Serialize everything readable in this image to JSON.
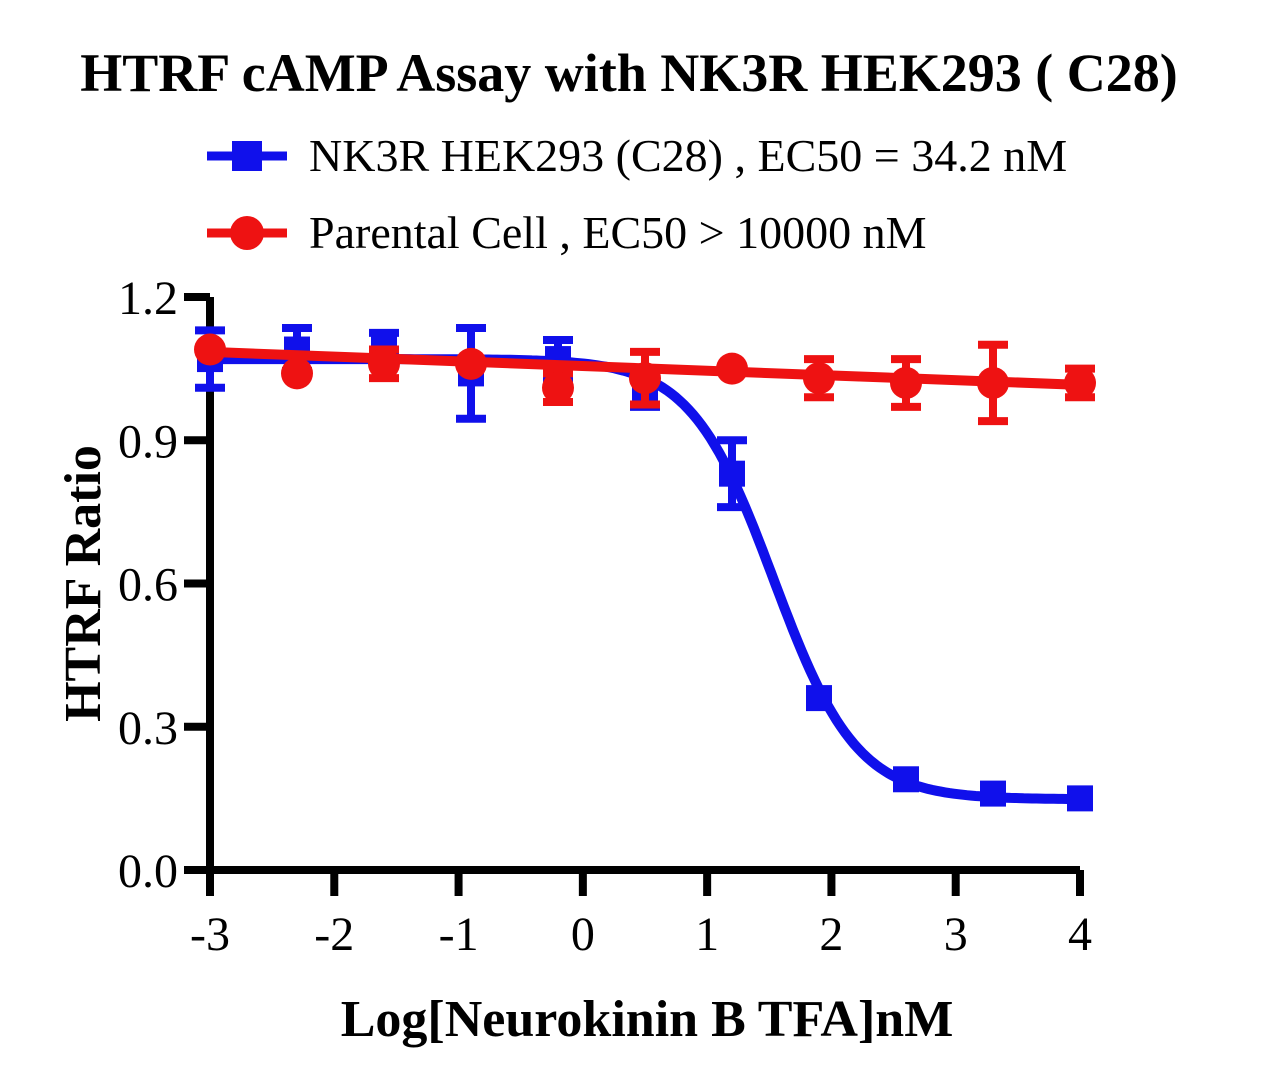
{
  "title": "HTRF cAMP Assay with NK3R HEK293 ( C28)",
  "legend": {
    "items": [
      {
        "label": "NK3R HEK293 (C28) ,  EC50 = 34.2 nM",
        "marker": "square",
        "color": "#1010eb"
      },
      {
        "label": "Parental Cell ,  EC50 > 10000 nM",
        "marker": "circle",
        "color": "#ee1212"
      }
    ]
  },
  "chart_data": {
    "type": "scatter",
    "title": "HTRF cAMP Assay with NK3R HEK293 ( C28)",
    "xlabel": "Log[Neurokinin B TFA]nM",
    "ylabel": "HTRF Ratio",
    "xlim": [
      -3,
      4
    ],
    "ylim": [
      0,
      1.2
    ],
    "x_ticks": [
      -3,
      -2,
      -1,
      0,
      1,
      2,
      3,
      4
    ],
    "y_ticks": [
      0.0,
      0.3,
      0.6,
      0.9,
      1.2
    ],
    "grid": false,
    "legend_position": "top",
    "x": [
      -3,
      -2.3,
      -1.6,
      -0.9,
      -0.2,
      0.5,
      1.2,
      1.9,
      2.6,
      3.3,
      4
    ],
    "series": [
      {
        "name": "NK3R HEK293 (C28)",
        "ec50_label": "EC50 = 34.2 nM",
        "color": "#1010eb",
        "marker": "square",
        "values": [
          1.07,
          1.09,
          1.1,
          1.04,
          1.07,
          1.0,
          0.83,
          0.36,
          0.19,
          0.16,
          0.15
        ],
        "errors": [
          0.06,
          0.045,
          0.025,
          0.095,
          0.04,
          0.03,
          0.07,
          0,
          0,
          0,
          0
        ],
        "fit": {
          "type": "4pl",
          "top": 1.07,
          "bottom": 0.148,
          "log_ec50": 1.534,
          "hill": 1.3
        }
      },
      {
        "name": "Parental Cell",
        "ec50_label": "EC50 > 10000 nM",
        "color": "#ee1212",
        "marker": "circle",
        "values": [
          1.09,
          1.04,
          1.06,
          1.06,
          1.01,
          1.03,
          1.05,
          1.03,
          1.02,
          1.02,
          1.02
        ],
        "errors": [
          0,
          0,
          0.03,
          0,
          0.03,
          0.055,
          0,
          0.04,
          0.05,
          0.08,
          0.03
        ],
        "fit": {
          "type": "line",
          "y_start": 1.085,
          "y_end": 1.016
        }
      }
    ]
  }
}
